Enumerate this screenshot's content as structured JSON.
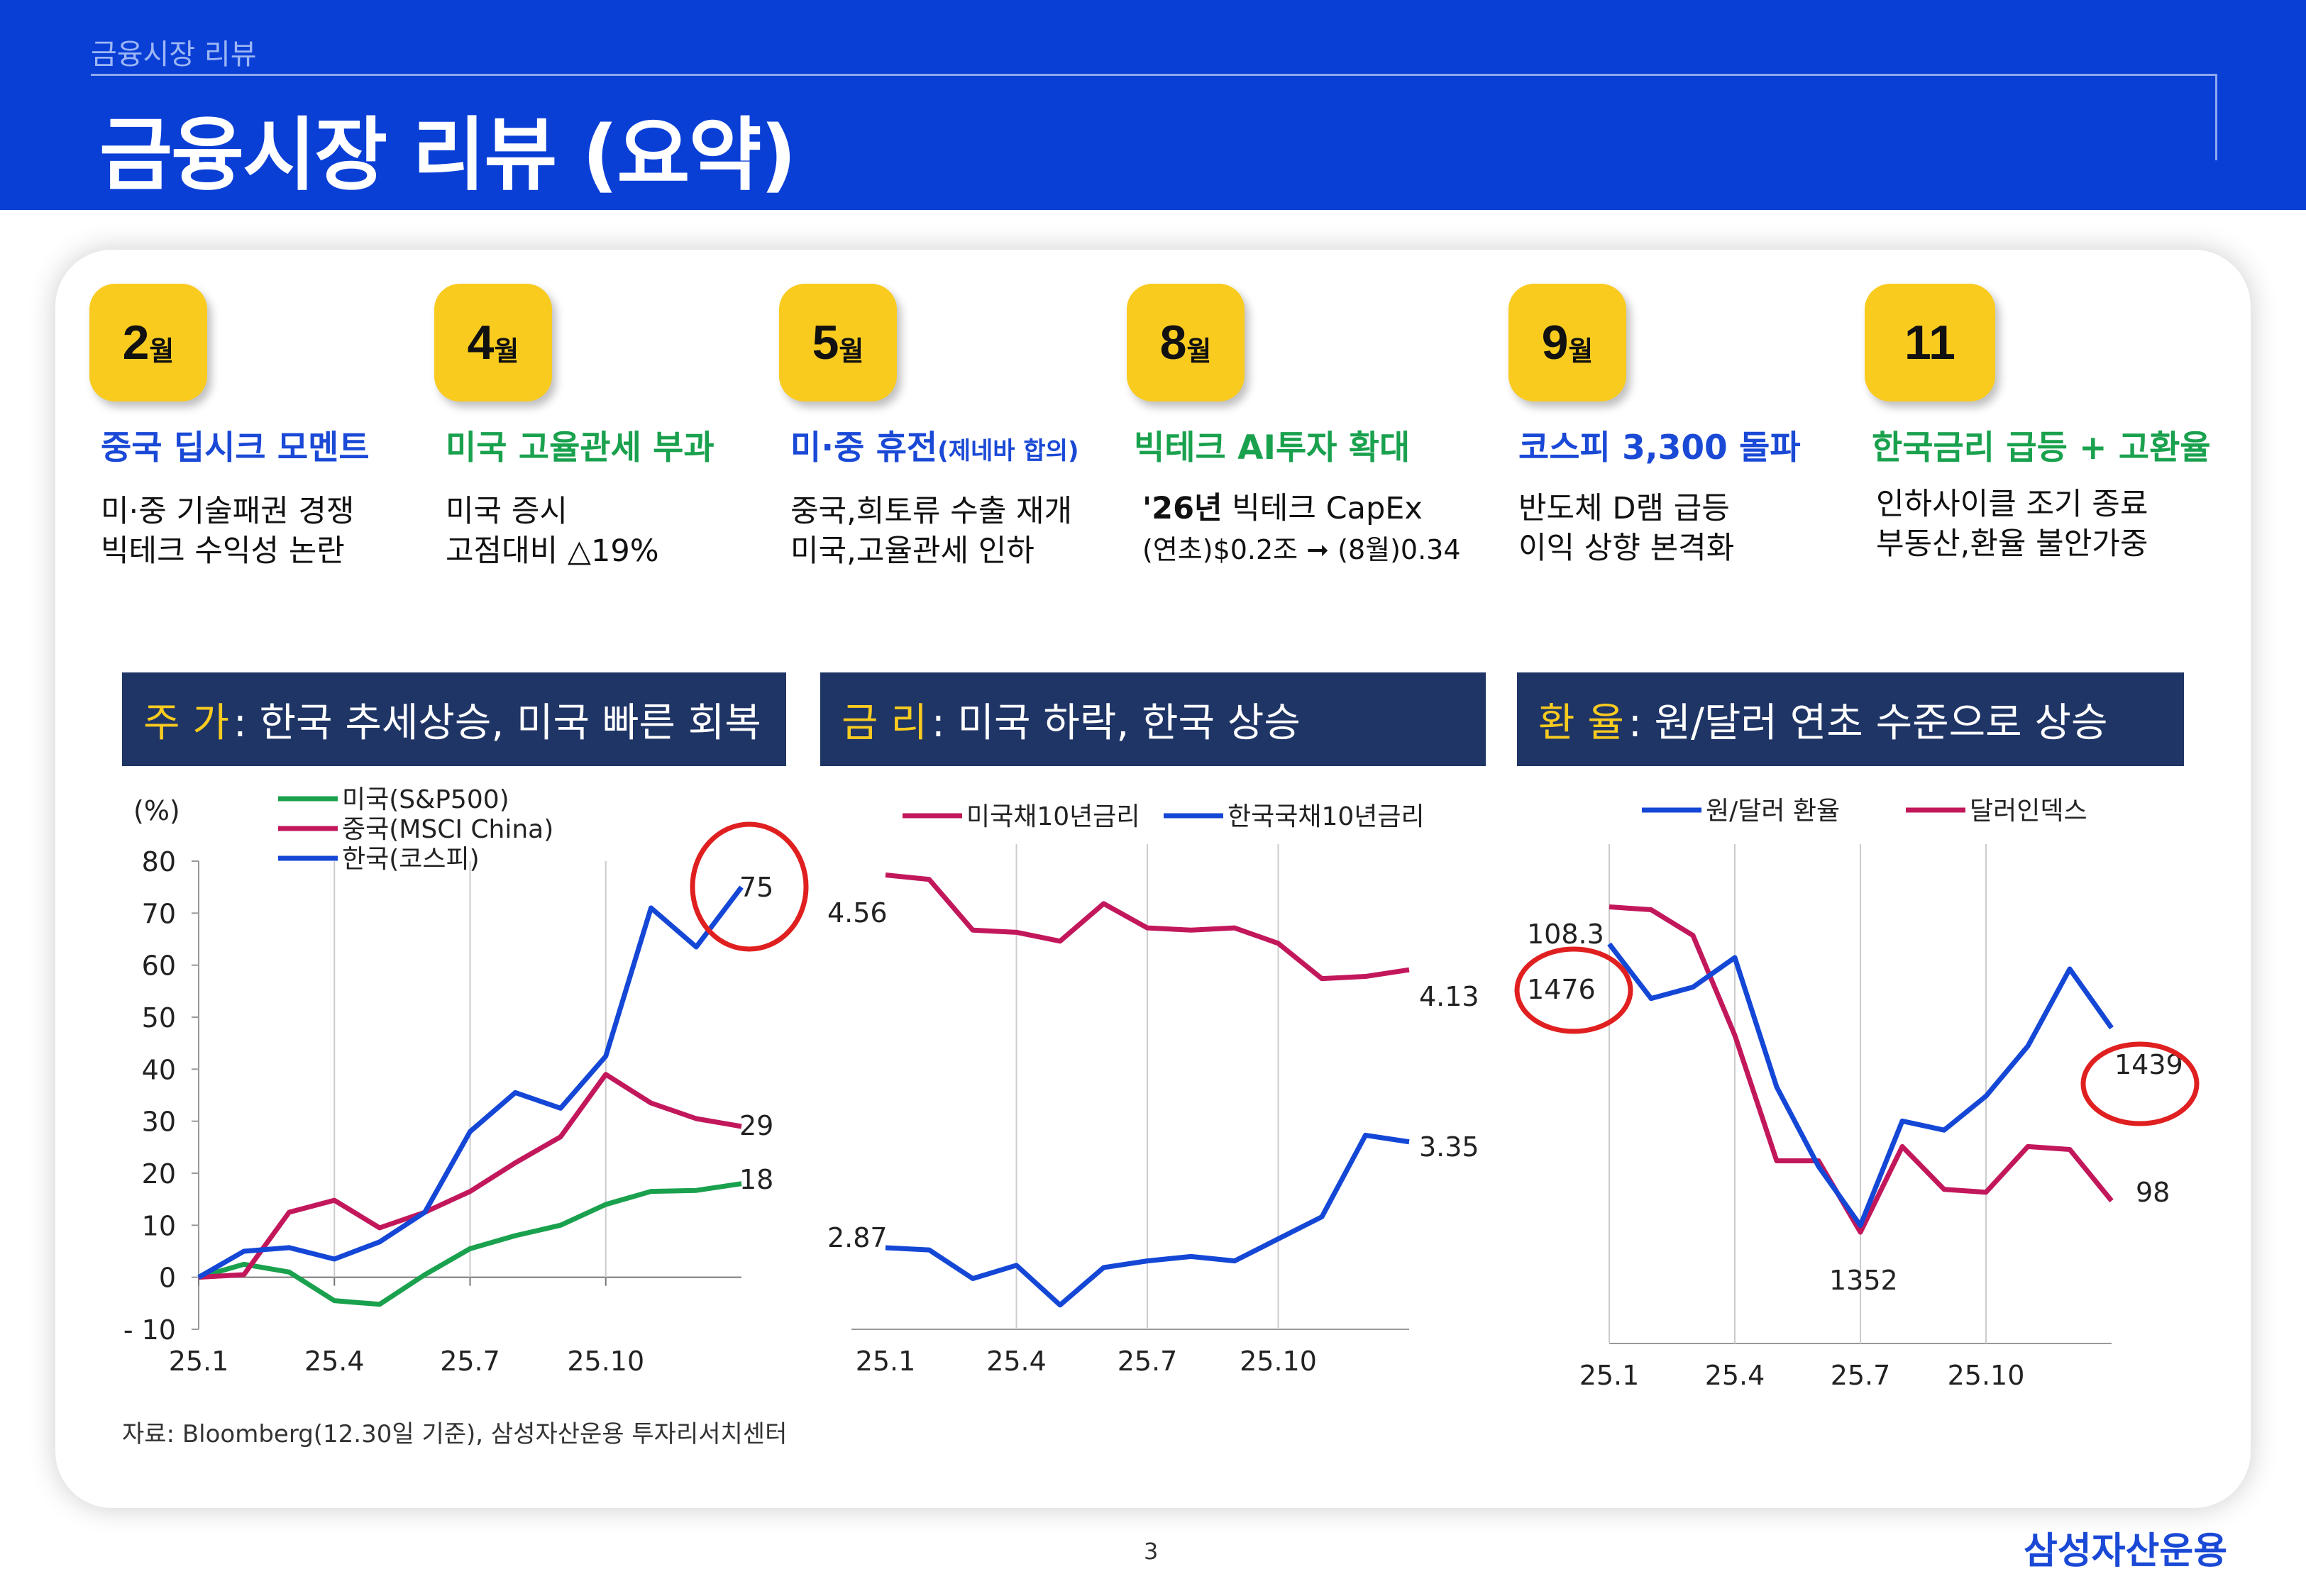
{
  "header": {
    "breadcrumb": "금융시장 리뷰",
    "title": "금융시장 리뷰 (요약)"
  },
  "milestones": [
    {
      "num": "2",
      "unit": "월",
      "title": "중국 딥시크 모멘트",
      "title_small": "",
      "line1": "미·중 기술패권 경쟁",
      "line2": "빅테크 수익성 논란",
      "color": "#1a49d6"
    },
    {
      "num": "4",
      "unit": "월",
      "title": "미국 고율관세 부과",
      "title_small": "",
      "line1": "미국 증시",
      "line2": "고점대비 △19%",
      "color": "#1aa14e"
    },
    {
      "num": "5",
      "unit": "월",
      "title": "미·중 휴전",
      "title_small": "(제네바 합의)",
      "line1": "중국,희토류 수출 재개",
      "line2": "미국,고율관세 인하",
      "color": "#1a49d6"
    },
    {
      "num": "8",
      "unit": "월",
      "title": "빅테크 AI투자 확대",
      "title_small": "",
      "line1_bold": "'26년",
      "line1": " 빅테크 CapEx",
      "line2": "(연초)$0.2조 ➞ (8월)0.34",
      "color": "#1aa14e"
    },
    {
      "num": "9",
      "unit": "월",
      "title": "코스피 3,300 돌파",
      "title_small": "",
      "line1": "반도체 D램 급등",
      "line2": "이익 상향 본격화",
      "color": "#1a49d6"
    },
    {
      "num": "11",
      "unit": "",
      "title": "한국금리 급등 + 고환율",
      "title_small": "",
      "line1": "인하사이클 조기 종료",
      "line2": "부동산,환율 불안가중",
      "color": "#1aa14e"
    }
  ],
  "sections": [
    {
      "key": "주 가",
      "text": " : 한국 추세상승, 미국 빠른 회복"
    },
    {
      "key": "금 리",
      "text": " : 미국 하락, 한국 상승"
    },
    {
      "key": "환 율",
      "text": " : 원/달러 연초 수준으로 상승"
    }
  ],
  "chart_data": [
    {
      "type": "line",
      "title": "주 가 : 한국 추세상승, 미국 빠른 회복",
      "ylabel": "(%)",
      "ylim": [
        -10,
        80
      ],
      "yticks": [
        -10,
        0,
        10,
        20,
        30,
        40,
        50,
        60,
        70,
        80
      ],
      "xticks": [
        "25.1",
        "25.4",
        "25.7",
        "25.10"
      ],
      "x": [
        0,
        1,
        2,
        3,
        4,
        5,
        6,
        7,
        8,
        9,
        10,
        11,
        12
      ],
      "series": [
        {
          "name": "미국(S&P500)",
          "color": "#1aa14e",
          "values": [
            0,
            2.5,
            1,
            -4.5,
            -5.2,
            0.5,
            5.5,
            8,
            10,
            14,
            16.5,
            16.7,
            18
          ]
        },
        {
          "name": "중국(MSCI China)",
          "color": "#c2185b",
          "values": [
            0,
            0.5,
            12.5,
            14.8,
            9.5,
            12.5,
            16.5,
            22,
            27,
            39,
            33.5,
            30.5,
            29
          ]
        },
        {
          "name": "한국(코스피)",
          "color": "#1447d6",
          "values": [
            0,
            5,
            5.7,
            3.5,
            6.8,
            12.5,
            28,
            35.5,
            32.5,
            42.5,
            71,
            63.5,
            75
          ]
        }
      ],
      "end_labels": [
        "18",
        "29",
        "75"
      ],
      "highlight": "75"
    },
    {
      "type": "line",
      "title": "금 리 : 미국 하락, 한국 상승",
      "ylim": [
        2.5,
        4.7
      ],
      "xticks": [
        "25.1",
        "25.4",
        "25.7",
        "25.10"
      ],
      "x": [
        0,
        1,
        2,
        3,
        4,
        5,
        6,
        7,
        8,
        9,
        10,
        11,
        12
      ],
      "series": [
        {
          "name": "미국채10년금리",
          "color": "#c2185b",
          "values": [
            4.56,
            4.54,
            4.31,
            4.3,
            4.26,
            4.43,
            4.32,
            4.31,
            4.32,
            4.25,
            4.09,
            4.1,
            4.13
          ]
        },
        {
          "name": "한국국채10년금리",
          "color": "#1447d6",
          "values": [
            2.87,
            2.86,
            2.73,
            2.79,
            2.61,
            2.78,
            2.81,
            2.83,
            2.81,
            2.91,
            3.01,
            3.38,
            3.35
          ]
        }
      ],
      "point_labels": [
        "4.56",
        "4.13",
        "2.87",
        "3.35"
      ]
    },
    {
      "type": "line",
      "title": "환 율 : 원/달러 연초 수준으로 상승",
      "xticks": [
        "25.1",
        "25.4",
        "25.7",
        "25.10"
      ],
      "x": [
        0,
        1,
        2,
        3,
        4,
        5,
        6,
        7,
        8,
        9,
        10,
        11,
        12
      ],
      "series": [
        {
          "name": "원/달러 환율",
          "color": "#1447d6",
          "axis": "left",
          "ylim": [
            1300,
            1520
          ],
          "values": [
            1476,
            1452,
            1457,
            1470,
            1413,
            1378,
            1352,
            1398,
            1394,
            1409,
            1431,
            1465,
            1439
          ]
        },
        {
          "name": "달러인덱스",
          "color": "#c2185b",
          "axis": "right",
          "ylim": [
            93,
            110.5
          ],
          "values": [
            108.3,
            108.2,
            107.3,
            103.8,
            99.4,
            99.4,
            96.9,
            99.9,
            98.4,
            98.3,
            99.9,
            99.8,
            98
          ]
        }
      ],
      "point_labels": [
        "108.3",
        "1476",
        "1352",
        "1439",
        "98"
      ],
      "highlight": [
        "1476",
        "1439"
      ]
    }
  ],
  "footer": {
    "source": "자료: Bloomberg(12.30일 기준), 삼성자산운용 투자리서치센터",
    "page": "3",
    "brand": "삼성자산운용"
  }
}
